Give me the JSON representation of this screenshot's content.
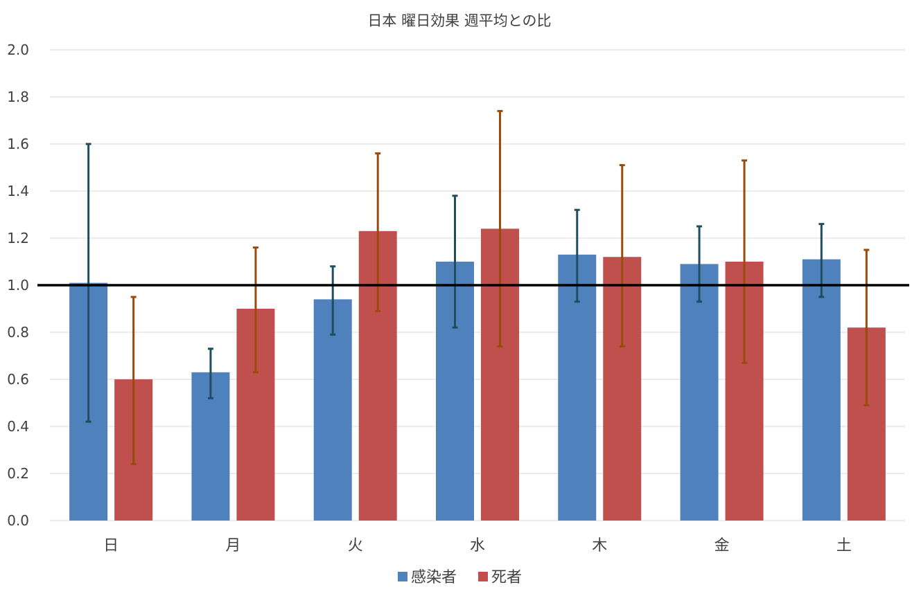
{
  "chart_data": {
    "type": "bar",
    "title": "日本  曜日効果  週平均との比",
    "xlabel": "",
    "ylabel": "",
    "categories": [
      "日",
      "月",
      "火",
      "水",
      "木",
      "金",
      "土"
    ],
    "ylim": [
      0,
      2.0
    ],
    "yticks": [
      "0.0",
      "0.2",
      "0.4",
      "0.6",
      "0.8",
      "1.0",
      "1.2",
      "1.4",
      "1.6",
      "1.8",
      "2.0"
    ],
    "grid": true,
    "legend_position": "bottom",
    "reference_line": 1.0,
    "series": [
      {
        "name": "感染者",
        "color": "#4F81BD",
        "error_color": "#1F4E5F",
        "values": [
          1.01,
          0.63,
          0.94,
          1.1,
          1.13,
          1.09,
          1.11
        ],
        "error_low": [
          0.42,
          0.52,
          0.79,
          0.82,
          0.93,
          0.93,
          0.95
        ],
        "error_high": [
          1.6,
          0.73,
          1.08,
          1.38,
          1.32,
          1.25,
          1.26
        ]
      },
      {
        "name": "死者",
        "color": "#C0504D",
        "error_color": "#9A4A0A",
        "values": [
          0.6,
          0.9,
          1.23,
          1.24,
          1.12,
          1.1,
          0.82
        ],
        "error_low": [
          0.24,
          0.63,
          0.89,
          0.74,
          0.74,
          0.67,
          0.49
        ],
        "error_high": [
          0.95,
          1.16,
          1.56,
          1.74,
          1.51,
          1.53,
          1.15
        ]
      }
    ]
  }
}
